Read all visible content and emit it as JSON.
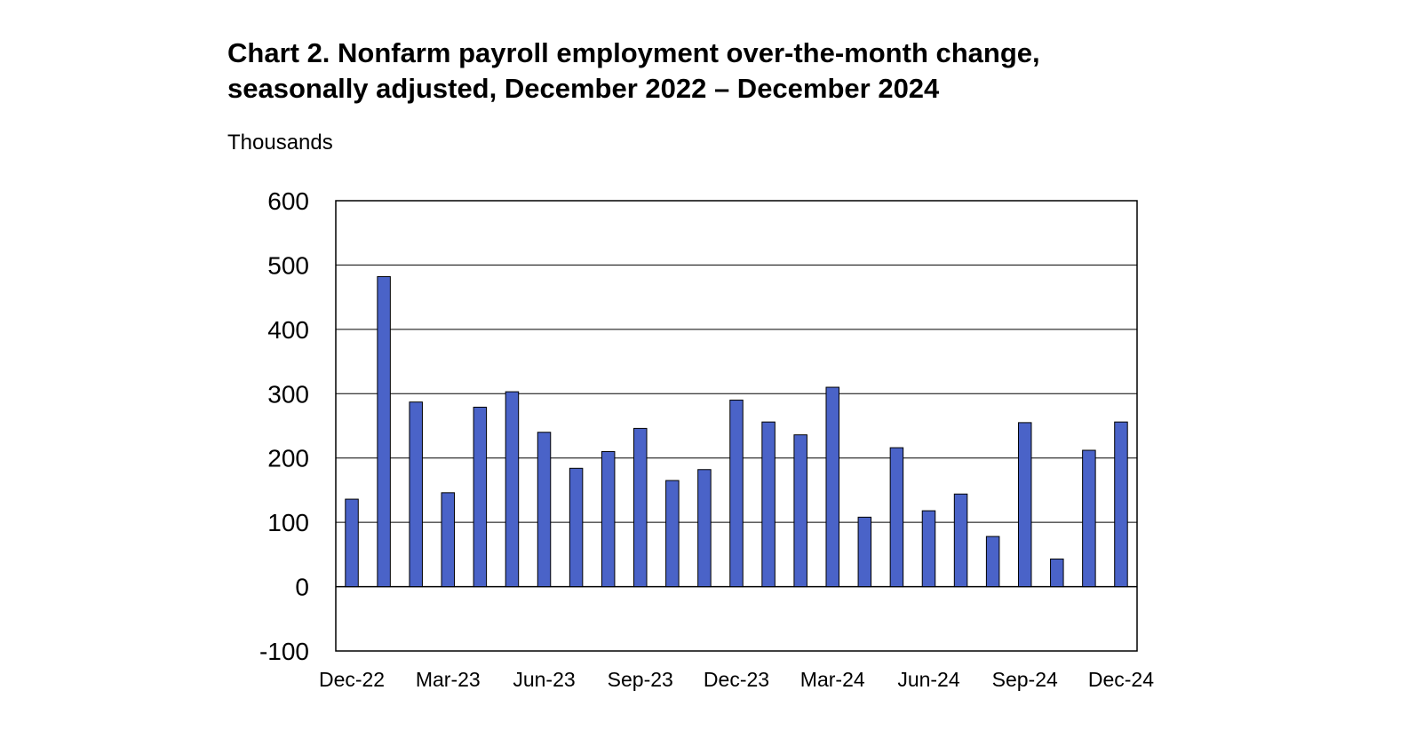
{
  "chart_data": {
    "type": "bar",
    "title_lines": [
      "Chart 2. Nonfarm payroll employment over-the-month change,",
      "seasonally adjusted, December 2022 – December 2024"
    ],
    "ylabel": "Thousands",
    "xlabel": "",
    "ylim": [
      -100,
      600
    ],
    "yticks": [
      600,
      500,
      400,
      300,
      200,
      100,
      0,
      -100
    ],
    "grid": true,
    "legend": "none",
    "bar_color": "#4a63c8",
    "categories": [
      "Dec-22",
      "Jan-23",
      "Feb-23",
      "Mar-23",
      "Apr-23",
      "May-23",
      "Jun-23",
      "Jul-23",
      "Aug-23",
      "Sep-23",
      "Oct-23",
      "Nov-23",
      "Dec-23",
      "Jan-24",
      "Feb-24",
      "Mar-24",
      "Apr-24",
      "May-24",
      "Jun-24",
      "Jul-24",
      "Aug-24",
      "Sep-24",
      "Oct-24",
      "Nov-24",
      "Dec-24"
    ],
    "x_tick_labels": [
      "Dec-22",
      "Mar-23",
      "Jun-23",
      "Sep-23",
      "Dec-23",
      "Mar-24",
      "Jun-24",
      "Sep-24",
      "Dec-24"
    ],
    "values": [
      136,
      482,
      287,
      146,
      279,
      303,
      240,
      184,
      210,
      246,
      165,
      182,
      290,
      256,
      236,
      310,
      108,
      216,
      118,
      144,
      78,
      255,
      43,
      212,
      256
    ]
  }
}
